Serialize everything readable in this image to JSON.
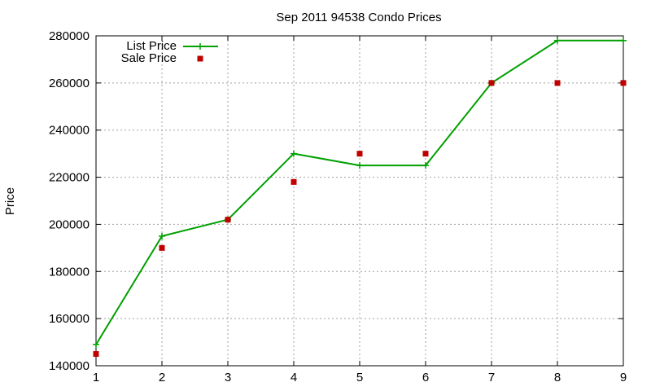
{
  "chart_data": {
    "type": "line",
    "title": "Sep 2011 94538 Condo Prices",
    "xlabel": "",
    "ylabel": "Price",
    "xlim": [
      1,
      9
    ],
    "ylim": [
      140000,
      280000
    ],
    "x_ticks": [
      1,
      2,
      3,
      4,
      5,
      6,
      7,
      8,
      9
    ],
    "y_ticks": [
      140000,
      160000,
      180000,
      200000,
      220000,
      240000,
      260000,
      280000
    ],
    "grid": true,
    "legend_position": "top-left",
    "x": [
      1,
      2,
      3,
      4,
      5,
      6,
      7,
      8,
      9
    ],
    "series": [
      {
        "name": "List Price",
        "style": "line-with-plus-markers",
        "color": "#00a000",
        "values": [
          149000,
          195000,
          202000,
          230000,
          225000,
          225000,
          260000,
          278000,
          278000
        ]
      },
      {
        "name": "Sale Price",
        "style": "square-markers",
        "color": "#c00000",
        "values": [
          145000,
          190000,
          202000,
          218000,
          230000,
          230000,
          260000,
          260000,
          260000
        ]
      }
    ]
  }
}
